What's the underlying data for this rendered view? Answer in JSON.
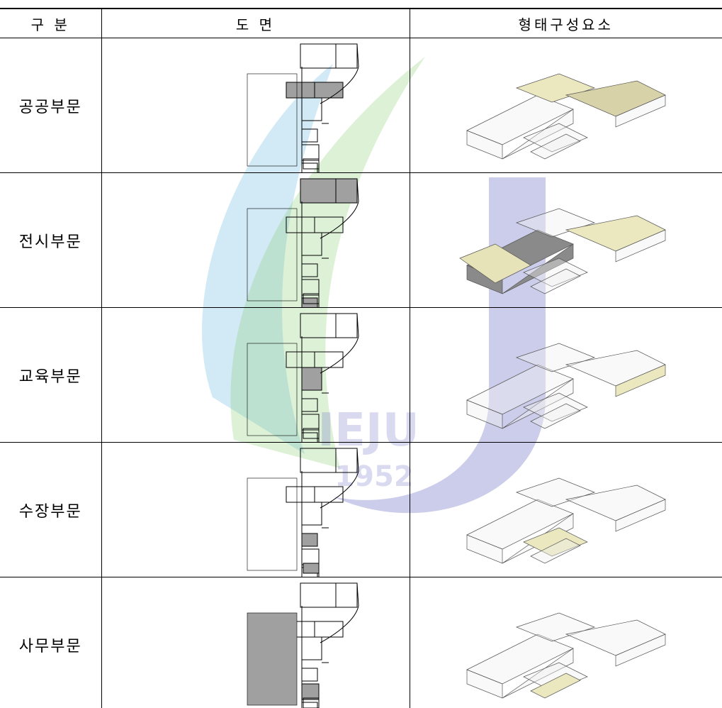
{
  "table": {
    "header": [
      "구 분",
      "도 면",
      "형태구성요소"
    ],
    "rows": [
      [
        "공공부문"
      ],
      [
        "전시부문"
      ],
      [
        "교육부문"
      ],
      [
        "수장부문"
      ],
      [
        "사무부문"
      ]
    ]
  },
  "watermark": {
    "texts": [
      "IEJU",
      "1952"
    ]
  }
}
